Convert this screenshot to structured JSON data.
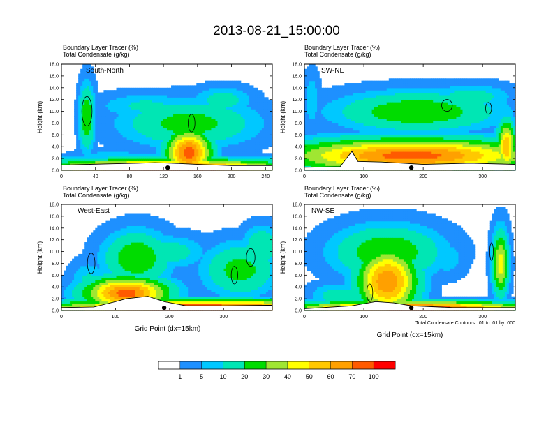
{
  "figure": {
    "title": "2013-08-21_15:00:00",
    "footnote": "Total Condensate Contours: .01 to .01 by .000"
  },
  "colors": {
    "scale": [
      "#ffffff",
      "#1e90ff",
      "#00c8ff",
      "#00e6b4",
      "#00dc00",
      "#a0e632",
      "#ffff00",
      "#ffc800",
      "#ffa000",
      "#ff5a00",
      "#ff0000"
    ],
    "contour": "#000000",
    "frame": "#000000"
  },
  "colorbar": {
    "labels": [
      "1",
      "5",
      "10",
      "20",
      "30",
      "40",
      "50",
      "60",
      "70",
      "100"
    ]
  },
  "chart_data": [
    {
      "type": "heatmap",
      "name": "South-North",
      "panel_label": "South-North",
      "subtitle_line1": "Boundary Layer Tracer   (%)",
      "subtitle_line2": "Total Condensate   (g/kg)",
      "xlabel": "",
      "ylabel": "Height (km)",
      "xlim": [
        0,
        248
      ],
      "ylim": [
        0,
        18
      ],
      "xticks": [
        "0",
        "40",
        "80",
        "120",
        "160",
        "200",
        "240"
      ],
      "xtick_values": [
        0,
        40,
        80,
        120,
        160,
        200,
        240
      ],
      "yticks": [
        "0.0",
        "2.0",
        "4.0",
        "6.0",
        "8.0",
        "10.0",
        "12.0",
        "14.0",
        "16.0",
        "18.0"
      ],
      "marker_x": 125,
      "terrain": [
        [
          0,
          0.9
        ],
        [
          30,
          1.0
        ],
        [
          60,
          1.1
        ],
        [
          90,
          1.2
        ],
        [
          110,
          1.3
        ],
        [
          130,
          1.2
        ],
        [
          160,
          1.0
        ],
        [
          200,
          0.8
        ],
        [
          248,
          0.8
        ]
      ],
      "features": [
        {
          "x": 125,
          "z": 0.3,
          "w": 130,
          "h": 1.4,
          "v": 85
        },
        {
          "x": 150,
          "z": 3.0,
          "w": 24,
          "h": 3.5,
          "v": 75
        },
        {
          "x": 150,
          "z": 8.0,
          "w": 70,
          "h": 3.5,
          "v": 25
        },
        {
          "x": 190,
          "z": 12.0,
          "w": 30,
          "h": 2.0,
          "v": 15
        },
        {
          "x": 30,
          "z": 9.0,
          "w": 8,
          "h": 5.0,
          "v": 30
        },
        {
          "x": 60,
          "z": 2.5,
          "w": 40,
          "h": 1.0,
          "v": 8
        },
        {
          "x": 100,
          "z": 11.0,
          "w": 50,
          "h": 2.0,
          "v": 12
        }
      ],
      "contours": [
        {
          "x": 30,
          "z": 10.0,
          "w": 12,
          "h": 5.0
        },
        {
          "x": 153,
          "z": 8.0,
          "w": 8,
          "h": 3.0
        }
      ]
    },
    {
      "type": "heatmap",
      "name": "SW-NE",
      "panel_label": "SW-NE",
      "subtitle_line1": "Boundary Layer Tracer   (%)",
      "subtitle_line2": "Total Condensate   (g/kg)",
      "xlabel": "",
      "ylabel": "Height (km)",
      "xlim": [
        0,
        355
      ],
      "ylim": [
        0,
        18
      ],
      "xticks": [
        "0",
        "100",
        "200",
        "300"
      ],
      "xtick_values": [
        0,
        100,
        200,
        300
      ],
      "yticks": [
        "0.0",
        "2.0",
        "4.0",
        "6.0",
        "8.0",
        "10.0",
        "12.0",
        "14.0",
        "16.0",
        "18.0"
      ],
      "marker_x": 180,
      "terrain": [
        [
          0,
          0.5
        ],
        [
          60,
          0.6
        ],
        [
          80,
          3.2
        ],
        [
          90,
          1.5
        ],
        [
          130,
          1.4
        ],
        [
          200,
          1.0
        ],
        [
          280,
          1.2
        ],
        [
          355,
          1.0
        ]
      ],
      "features": [
        {
          "x": 180,
          "z": 2.5,
          "w": 190,
          "h": 2.6,
          "v": 75
        },
        {
          "x": 150,
          "z": 4.8,
          "w": 175,
          "h": 1.0,
          "v": 20
        },
        {
          "x": 190,
          "z": 10.0,
          "w": 120,
          "h": 3.0,
          "v": 30
        },
        {
          "x": 12,
          "z": 12.0,
          "w": 12,
          "h": 4.0,
          "v": 10
        },
        {
          "x": 340,
          "z": 4.0,
          "w": 14,
          "h": 4.0,
          "v": 60
        },
        {
          "x": 280,
          "z": 12.5,
          "w": 60,
          "h": 2.0,
          "v": 15
        }
      ],
      "contours": [
        {
          "x": 240,
          "z": 11.0,
          "w": 18,
          "h": 2.0
        },
        {
          "x": 310,
          "z": 10.5,
          "w": 10,
          "h": 2.0
        }
      ]
    },
    {
      "type": "heatmap",
      "name": "West-East",
      "panel_label": "West-East",
      "subtitle_line1": "Boundary Layer Tracer   (%)",
      "subtitle_line2": "Total Condensate   (g/kg)",
      "xlabel": "Grid Point (dx=15km)",
      "ylabel": "Height (km)",
      "xlim": [
        0,
        390
      ],
      "ylim": [
        0,
        18
      ],
      "xticks": [
        "0",
        "100",
        "200",
        "300"
      ],
      "xtick_values": [
        0,
        100,
        200,
        300
      ],
      "yticks": [
        "0.0",
        "2.0",
        "4.0",
        "6.0",
        "8.0",
        "10.0",
        "12.0",
        "14.0",
        "16.0",
        "18.0"
      ],
      "marker_x": 190,
      "terrain": [
        [
          0,
          0.5
        ],
        [
          60,
          0.6
        ],
        [
          100,
          1.5
        ],
        [
          120,
          2.0
        ],
        [
          160,
          2.4
        ],
        [
          190,
          1.5
        ],
        [
          230,
          0.8
        ],
        [
          300,
          0.8
        ],
        [
          390,
          0.9
        ]
      ],
      "features": [
        {
          "x": 260,
          "z": 0.5,
          "w": 260,
          "h": 1.2,
          "v": 85
        },
        {
          "x": 120,
          "z": 3.0,
          "w": 70,
          "h": 2.5,
          "v": 75
        },
        {
          "x": 140,
          "z": 9.0,
          "w": 55,
          "h": 4.0,
          "v": 30
        },
        {
          "x": 50,
          "z": 5.0,
          "w": 30,
          "h": 3.0,
          "v": 12
        },
        {
          "x": 330,
          "z": 7.0,
          "w": 60,
          "h": 4.0,
          "v": 25
        },
        {
          "x": 200,
          "z": 10.0,
          "w": 60,
          "h": 2.5,
          "v": 15
        },
        {
          "x": 370,
          "z": 11.0,
          "w": 30,
          "h": 3.0,
          "v": 20
        }
      ],
      "contours": [
        {
          "x": 55,
          "z": 8.0,
          "w": 14,
          "h": 3.5
        },
        {
          "x": 320,
          "z": 6.0,
          "w": 12,
          "h": 3.0
        },
        {
          "x": 350,
          "z": 9.0,
          "w": 16,
          "h": 3.0
        }
      ]
    },
    {
      "type": "heatmap",
      "name": "NW-SE",
      "panel_label": "NW-SE",
      "subtitle_line1": "Boundary Layer Tracer   (%)",
      "subtitle_line2": "Total Condensate   (g/kg)",
      "xlabel": "Grid Point (dx=15km)",
      "ylabel": "Height (km)",
      "xlim": [
        0,
        355
      ],
      "ylim": [
        0,
        18
      ],
      "xticks": [
        "0",
        "100",
        "200",
        "300"
      ],
      "xtick_values": [
        0,
        100,
        200,
        300
      ],
      "yticks": [
        "0.0",
        "2.0",
        "4.0",
        "6.0",
        "8.0",
        "10.0",
        "12.0",
        "14.0",
        "16.0",
        "18.0"
      ],
      "marker_x": 180,
      "terrain": [
        [
          0,
          0.3
        ],
        [
          80,
          0.8
        ],
        [
          120,
          1.5
        ],
        [
          150,
          1.3
        ],
        [
          180,
          0.8
        ],
        [
          250,
          0.5
        ],
        [
          355,
          0.5
        ]
      ],
      "features": [
        {
          "x": 180,
          "z": 0.5,
          "w": 180,
          "h": 1.0,
          "v": 80
        },
        {
          "x": 140,
          "z": 5.0,
          "w": 45,
          "h": 5.0,
          "v": 70
        },
        {
          "x": 140,
          "z": 10.0,
          "w": 80,
          "h": 4.0,
          "v": 30
        },
        {
          "x": 60,
          "z": 2.5,
          "w": 45,
          "h": 2.0,
          "v": 15
        },
        {
          "x": 330,
          "z": 8.0,
          "w": 12,
          "h": 5.0,
          "v": 45
        },
        {
          "x": 240,
          "z": 9.0,
          "w": 30,
          "h": 3.0,
          "v": 8
        }
      ],
      "contours": [
        {
          "x": 110,
          "z": 3.0,
          "w": 10,
          "h": 3.0
        },
        {
          "x": 315,
          "z": 10.0,
          "w": 6,
          "h": 3.0
        }
      ]
    }
  ]
}
